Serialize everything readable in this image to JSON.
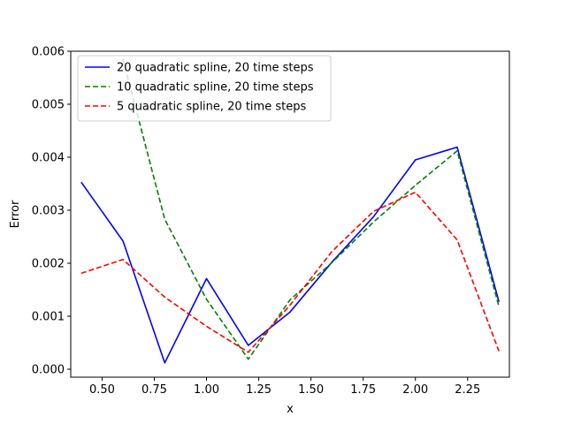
{
  "chart_data": {
    "type": "line",
    "title": "",
    "xlabel": "x",
    "ylabel": "Error",
    "xlim": [
      0.35,
      2.45
    ],
    "ylim": [
      -0.00015,
      0.006
    ],
    "xticks": [
      0.5,
      0.75,
      1.0,
      1.25,
      1.5,
      1.75,
      2.0,
      2.25
    ],
    "xtick_labels": [
      "0.50",
      "0.75",
      "1.00",
      "1.25",
      "1.50",
      "1.75",
      "2.00",
      "2.25"
    ],
    "yticks": [
      0.0,
      0.001,
      0.002,
      0.003,
      0.004,
      0.005,
      0.006
    ],
    "ytick_labels": [
      "0.000",
      "0.001",
      "0.002",
      "0.003",
      "0.004",
      "0.005",
      "0.006"
    ],
    "grid": false,
    "legend_position": "top-left",
    "x": [
      0.4,
      0.6,
      0.8,
      1.0,
      1.2,
      1.4,
      1.6,
      1.8,
      2.0,
      2.2,
      2.4
    ],
    "series": [
      {
        "name": "20 quadratic spline, 20 time steps",
        "color": "#0000ff",
        "dash": "solid",
        "values": [
          0.00353,
          0.00242,
          0.00012,
          0.00171,
          0.00045,
          0.00108,
          0.00202,
          0.00288,
          0.00395,
          0.00419,
          0.00127
        ]
      },
      {
        "name": "10 quadratic spline, 20 time steps",
        "color": "#008000",
        "dash": "dashed",
        "values": [
          null,
          0.00585,
          0.00283,
          0.00132,
          0.00019,
          0.00131,
          0.00201,
          0.00278,
          0.00347,
          0.00412,
          0.00118
        ]
      },
      {
        "name": "5 quadratic spline, 20 time steps",
        "color": "#ff0000",
        "dash": "dashed",
        "values": [
          0.00181,
          0.00207,
          0.00136,
          0.00081,
          0.00032,
          0.00121,
          0.00222,
          0.00298,
          0.00334,
          0.00244,
          0.00034
        ]
      }
    ]
  }
}
